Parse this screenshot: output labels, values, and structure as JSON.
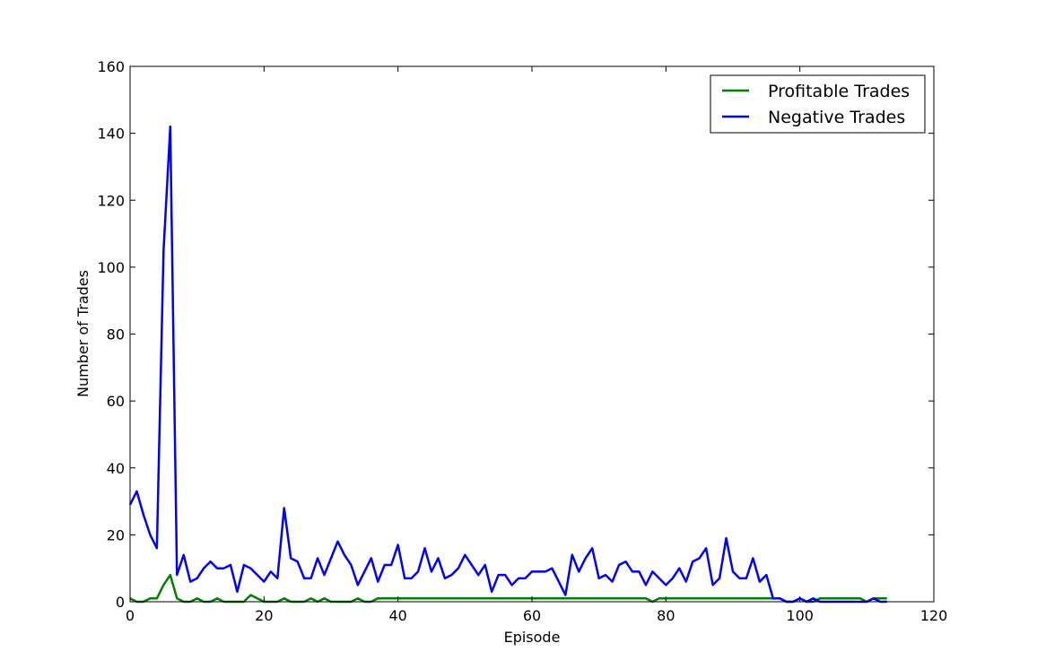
{
  "chart_data": {
    "type": "line",
    "title": "",
    "xlabel": "Episode",
    "ylabel": "Number of Trades",
    "xlim": [
      0,
      120
    ],
    "ylim": [
      0,
      160
    ],
    "xticks": [
      0,
      20,
      40,
      60,
      80,
      100,
      120
    ],
    "yticks": [
      0,
      20,
      40,
      60,
      80,
      100,
      120,
      140,
      160
    ],
    "grid": false,
    "legend_position": "top-right",
    "series": [
      {
        "name": "Profitable Trades",
        "color": "#008000",
        "x": [
          0,
          1,
          2,
          3,
          4,
          5,
          6,
          7,
          8,
          9,
          10,
          11,
          12,
          13,
          14,
          15,
          16,
          17,
          18,
          19,
          20,
          21,
          22,
          23,
          24,
          25,
          26,
          27,
          28,
          29,
          30,
          31,
          32,
          33,
          34,
          35,
          36,
          37,
          38,
          39,
          40,
          41,
          42,
          43,
          44,
          45,
          46,
          47,
          48,
          49,
          50,
          51,
          52,
          53,
          54,
          55,
          56,
          57,
          58,
          59,
          60,
          61,
          62,
          63,
          64,
          65,
          66,
          67,
          68,
          69,
          70,
          71,
          72,
          73,
          74,
          75,
          76,
          77,
          78,
          79,
          80,
          81,
          82,
          83,
          84,
          85,
          86,
          87,
          88,
          89,
          90,
          91,
          92,
          93,
          94,
          95,
          96,
          97,
          98,
          99,
          100,
          101,
          102,
          103,
          104,
          105,
          106,
          107,
          108,
          109,
          110,
          111,
          112,
          113
        ],
        "values": [
          1,
          0,
          0,
          1,
          1,
          5,
          8,
          1,
          0,
          0,
          1,
          0,
          0,
          1,
          0,
          0,
          0,
          0,
          2,
          1,
          0,
          0,
          0,
          1,
          0,
          0,
          0,
          1,
          0,
          1,
          0,
          0,
          0,
          0,
          1,
          0,
          0,
          1,
          1,
          1,
          1,
          1,
          1,
          1,
          1,
          1,
          1,
          1,
          1,
          1,
          1,
          1,
          1,
          1,
          1,
          1,
          1,
          1,
          1,
          1,
          1,
          1,
          1,
          1,
          1,
          1,
          1,
          1,
          1,
          1,
          1,
          1,
          1,
          1,
          1,
          1,
          1,
          1,
          0,
          1,
          1,
          1,
          1,
          1,
          1,
          1,
          1,
          1,
          1,
          1,
          1,
          1,
          1,
          1,
          1,
          1,
          1,
          1,
          0,
          0,
          1,
          0,
          0,
          1,
          1,
          1,
          1,
          1,
          1,
          1,
          0,
          1,
          1,
          1
        ]
      },
      {
        "name": "Negative Trades",
        "color": "#0000ff",
        "x": [
          0,
          1,
          2,
          3,
          4,
          5,
          6,
          7,
          8,
          9,
          10,
          11,
          12,
          13,
          14,
          15,
          16,
          17,
          18,
          19,
          20,
          21,
          22,
          23,
          24,
          25,
          26,
          27,
          28,
          29,
          30,
          31,
          32,
          33,
          34,
          35,
          36,
          37,
          38,
          39,
          40,
          41,
          42,
          43,
          44,
          45,
          46,
          47,
          48,
          49,
          50,
          51,
          52,
          53,
          54,
          55,
          56,
          57,
          58,
          59,
          60,
          61,
          62,
          63,
          64,
          65,
          66,
          67,
          68,
          69,
          70,
          71,
          72,
          73,
          74,
          75,
          76,
          77,
          78,
          79,
          80,
          81,
          82,
          83,
          84,
          85,
          86,
          87,
          88,
          89,
          90,
          91,
          92,
          93,
          94,
          95,
          96,
          97,
          98,
          99,
          100,
          101,
          102,
          103,
          104,
          105,
          106,
          107,
          108,
          109,
          110,
          111,
          112,
          113
        ],
        "values": [
          29,
          33,
          26,
          20,
          16,
          105,
          142,
          8,
          14,
          6,
          7,
          10,
          12,
          10,
          10,
          11,
          3,
          11,
          10,
          8,
          6,
          9,
          7,
          28,
          13,
          12,
          7,
          7,
          13,
          8,
          13,
          18,
          14,
          11,
          5,
          9,
          13,
          6,
          11,
          11,
          17,
          7,
          7,
          9,
          16,
          9,
          13,
          7,
          8,
          10,
          14,
          11,
          8,
          11,
          3,
          8,
          8,
          5,
          7,
          7,
          9,
          9,
          9,
          10,
          6,
          2,
          14,
          9,
          13,
          16,
          7,
          8,
          6,
          11,
          12,
          9,
          9,
          5,
          9,
          7,
          5,
          7,
          10,
          6,
          12,
          13,
          16,
          5,
          7,
          19,
          9,
          7,
          7,
          13,
          6,
          8,
          1,
          1,
          0,
          0,
          1,
          0,
          1,
          0,
          0,
          0,
          0,
          0,
          0,
          0,
          0,
          1,
          0,
          0
        ]
      }
    ]
  }
}
